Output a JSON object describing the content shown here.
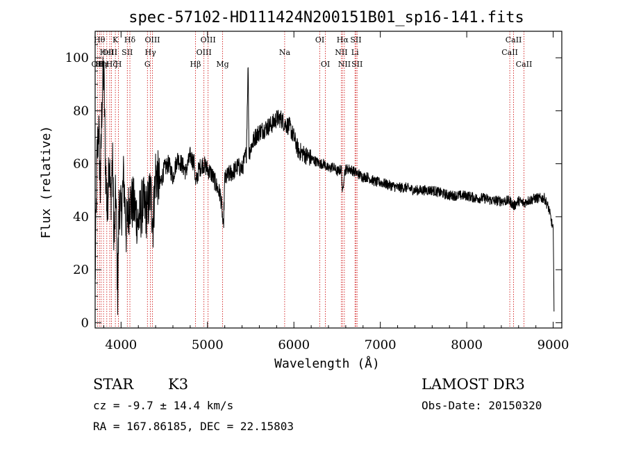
{
  "chart_data": {
    "type": "line",
    "title": "spec-57102-HD111424N200151B01_sp16-141.fits",
    "xlabel": "Wavelength (Å)",
    "ylabel": "Flux (relative)",
    "xlim": [
      3700,
      9100
    ],
    "ylim": [
      -2,
      110
    ],
    "xticks": [
      4000,
      5000,
      6000,
      7000,
      8000,
      9000
    ],
    "yticks": [
      0,
      20,
      40,
      60,
      80,
      100
    ],
    "series": [
      {
        "name": "spectrum",
        "x": [
          3700,
          3720,
          3740,
          3760,
          3780,
          3800,
          3820,
          3840,
          3860,
          3880,
          3900,
          3920,
          3940,
          3960,
          3980,
          4000,
          4030,
          4060,
          4100,
          4150,
          4200,
          4250,
          4300,
          4340,
          4370,
          4400,
          4450,
          4500,
          4550,
          4600,
          4650,
          4700,
          4750,
          4800,
          4850,
          4861,
          4900,
          4950,
          5000,
          5050,
          5100,
          5150,
          5170,
          5183,
          5200,
          5250,
          5300,
          5350,
          5400,
          5450,
          5470,
          5480,
          5500,
          5550,
          5600,
          5650,
          5700,
          5750,
          5800,
          5850,
          5900,
          5950,
          6000,
          6050,
          6100,
          6150,
          6200,
          6250,
          6300,
          6350,
          6400,
          6450,
          6500,
          6550,
          6563,
          6580,
          6600,
          6650,
          6700,
          6750,
          6800,
          6850,
          6900,
          6950,
          7000,
          7100,
          7200,
          7300,
          7400,
          7500,
          7600,
          7700,
          7800,
          7900,
          8000,
          8100,
          8200,
          8300,
          8400,
          8500,
          8542,
          8600,
          8662,
          8700,
          8800,
          8900,
          8950,
          9000,
          9010
        ],
        "y": [
          15,
          60,
          75,
          50,
          85,
          95,
          60,
          40,
          65,
          45,
          62,
          30,
          50,
          12,
          48,
          40,
          55,
          35,
          46,
          44,
          38,
          45,
          42,
          50,
          38,
          57,
          52,
          58,
          60,
          55,
          62,
          60,
          57,
          63,
          60,
          52,
          58,
          60,
          58,
          56,
          52,
          48,
          42,
          34,
          54,
          56,
          57,
          59,
          58,
          64,
          98,
          64,
          66,
          70,
          72,
          73,
          74,
          75,
          77,
          77,
          75,
          74,
          70,
          65,
          64,
          63,
          62,
          61,
          60,
          60,
          58,
          59,
          57,
          58,
          48,
          56,
          58,
          58,
          57,
          56,
          55,
          55,
          54,
          53,
          53,
          52,
          51,
          51,
          50,
          50,
          50,
          49,
          48,
          48,
          48,
          47,
          47,
          46,
          46,
          46,
          44,
          46,
          45,
          46,
          47,
          47,
          43,
          35,
          6
        ]
      }
    ],
    "line_markers": [
      {
        "wavelength": 3727,
        "label": "OII",
        "row": 2
      },
      {
        "wavelength": 3750,
        "label": "Hθ",
        "row": 0
      },
      {
        "wavelength": 3770,
        "label": "Hη",
        "row": 2
      },
      {
        "wavelength": 3797,
        "label": "Hε",
        "row": 2
      },
      {
        "wavelength": 3835,
        "label": "HeI",
        "row": 1
      },
      {
        "wavelength": 3869,
        "label": "OIII",
        "row": 1
      },
      {
        "wavelength": 3889,
        "label": "Hζ",
        "row": 2
      },
      {
        "wavelength": 3934,
        "label": "K",
        "row": 0
      },
      {
        "wavelength": 3970,
        "label": "H",
        "row": 2
      },
      {
        "wavelength": 4072,
        "label": "SII",
        "row": 1
      },
      {
        "wavelength": 4102,
        "label": "Hδ",
        "row": 0
      },
      {
        "wavelength": 4305,
        "label": "G",
        "row": 2
      },
      {
        "wavelength": 4340,
        "label": "Hγ",
        "row": 1
      },
      {
        "wavelength": 4363,
        "label": "OIII",
        "row": 0
      },
      {
        "wavelength": 4861,
        "label": "Hβ",
        "row": 2
      },
      {
        "wavelength": 4959,
        "label": "OIII",
        "row": 1
      },
      {
        "wavelength": 5007,
        "label": "OIII",
        "row": 0
      },
      {
        "wavelength": 5175,
        "label": "Mg",
        "row": 2
      },
      {
        "wavelength": 5893,
        "label": "Na",
        "row": 1
      },
      {
        "wavelength": 6300,
        "label": "OI",
        "row": 0
      },
      {
        "wavelength": 6364,
        "label": "OI",
        "row": 2
      },
      {
        "wavelength": 6548,
        "label": "NII",
        "row": 1
      },
      {
        "wavelength": 6563,
        "label": "Hα",
        "row": 0
      },
      {
        "wavelength": 6584,
        "label": "NII",
        "row": 2
      },
      {
        "wavelength": 6707,
        "label": "Li",
        "row": 1
      },
      {
        "wavelength": 6717,
        "label": "SII",
        "row": 0
      },
      {
        "wavelength": 6731,
        "label": "SII",
        "row": 2
      },
      {
        "wavelength": 8498,
        "label": "CaII",
        "row": 1
      },
      {
        "wavelength": 8542,
        "label": "CaII",
        "row": 0
      },
      {
        "wavelength": 8662,
        "label": "CaII",
        "row": 2
      }
    ]
  },
  "info": {
    "class": "STAR",
    "subclass": "K3",
    "cz": "cz = -9.7 ± 14.4 km/s",
    "radec": "RA = 167.86185, DEC =  22.15803",
    "survey": "LAMOST DR3",
    "obsdate": "Obs-Date: 20150320"
  },
  "colors": {
    "line": "#000000",
    "marker": "#cc0000",
    "axis": "#000000"
  }
}
